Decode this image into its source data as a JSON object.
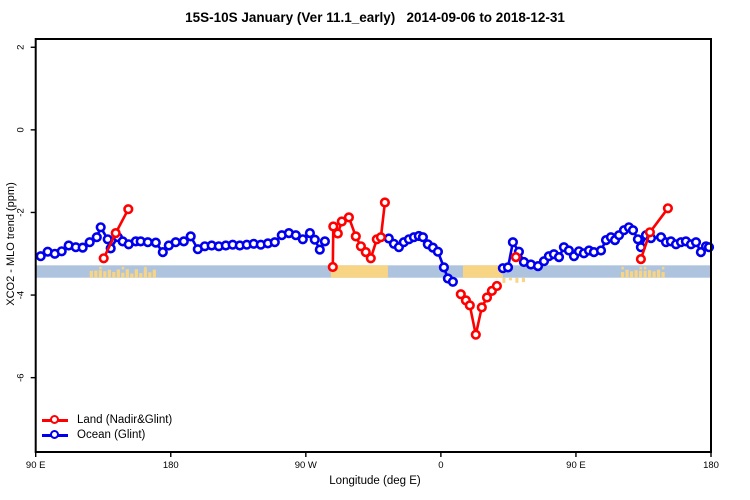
{
  "chart_data": {
    "type": "line",
    "title": "15S-10S January (Ver 11.1_early)   2014-09-06 to 2018-12-31",
    "xlabel": "Longitude (deg E)",
    "ylabel": "XCO2 - MLO trend (ppm)",
    "x_axis": {
      "range": [
        90,
        540
      ],
      "ticks": [
        {
          "lon": 90,
          "label": "90 E"
        },
        {
          "lon": 180,
          "label": "180"
        },
        {
          "lon": 270,
          "label": "90 W"
        },
        {
          "lon": 360,
          "label": "0"
        },
        {
          "lon": 450,
          "label": "90 E"
        },
        {
          "lon": 540,
          "label": "180"
        }
      ],
      "note": "longitude wraps eastward from 90E through 180, 90W, 0, 90E to 180"
    },
    "y_axis": {
      "range": [
        -7.8,
        2.2
      ],
      "ticks": [
        2,
        0,
        -2,
        -4,
        -6
      ]
    },
    "band": {
      "y_top": -3.28,
      "y_bottom": -3.58,
      "color": "#aec3de",
      "patch_color": "#f8d584",
      "patches": [
        {
          "from": 126.0,
          "to": 169.0,
          "style": "speckled"
        },
        {
          "from": 286.7,
          "to": 324.7,
          "style": "solid"
        },
        {
          "from": 374.7,
          "to": 401.3,
          "style": "solid"
        },
        {
          "from": 401.0,
          "to": 415.5,
          "style": "below"
        },
        {
          "from": 480.0,
          "to": 508.0,
          "style": "speckled"
        }
      ]
    },
    "grid": false,
    "legend_position": "bottom-left",
    "series": [
      {
        "name": "Ocean (Glint)",
        "color": "#0000ee",
        "segments": [
          [
            [
              93.3,
              -3.06
            ],
            [
              98.0,
              -2.95
            ],
            [
              102.7,
              -3.0
            ],
            [
              107.3,
              -2.94
            ],
            [
              112.0,
              -2.8
            ],
            [
              116.7,
              -2.84
            ],
            [
              121.3,
              -2.85
            ],
            [
              126.0,
              -2.72
            ],
            [
              130.7,
              -2.6
            ],
            [
              133.3,
              -2.36
            ],
            [
              138.0,
              -2.65
            ],
            [
              140.0,
              -2.87
            ],
            [
              144.7,
              -2.6
            ],
            [
              148.0,
              -2.7
            ],
            [
              152.0,
              -2.77
            ],
            [
              156.7,
              -2.7
            ],
            [
              160.0,
              -2.7
            ],
            [
              164.7,
              -2.72
            ],
            [
              170.0,
              -2.73
            ],
            [
              174.7,
              -2.96
            ],
            [
              178.7,
              -2.8
            ],
            [
              183.3,
              -2.72
            ],
            [
              188.7,
              -2.7
            ],
            [
              193.3,
              -2.58
            ],
            [
              198.0,
              -2.89
            ],
            [
              202.7,
              -2.82
            ],
            [
              207.3,
              -2.8
            ],
            [
              212.0,
              -2.82
            ],
            [
              216.7,
              -2.8
            ],
            [
              221.3,
              -2.78
            ],
            [
              226.0,
              -2.8
            ],
            [
              230.7,
              -2.78
            ],
            [
              235.3,
              -2.76
            ],
            [
              240.0,
              -2.78
            ],
            [
              244.7,
              -2.75
            ],
            [
              249.3,
              -2.72
            ],
            [
              254.0,
              -2.55
            ],
            [
              258.7,
              -2.5
            ],
            [
              263.3,
              -2.55
            ],
            [
              268.0,
              -2.65
            ],
            [
              272.7,
              -2.5
            ],
            [
              276.0,
              -2.66
            ],
            [
              279.3,
              -2.9
            ],
            [
              282.7,
              -2.7
            ]
          ],
          [
            [
              325.3,
              -2.63
            ],
            [
              328.7,
              -2.76
            ],
            [
              332.0,
              -2.84
            ],
            [
              335.3,
              -2.72
            ],
            [
              338.7,
              -2.65
            ],
            [
              342.0,
              -2.6
            ],
            [
              345.3,
              -2.57
            ],
            [
              348.0,
              -2.6
            ],
            [
              351.3,
              -2.77
            ],
            [
              354.7,
              -2.85
            ],
            [
              358.0,
              -2.95
            ],
            [
              362.0,
              -3.33
            ],
            [
              364.7,
              -3.6
            ],
            [
              368.0,
              -3.68
            ]
          ],
          [
            [
              401.3,
              -3.35
            ],
            [
              404.7,
              -3.33
            ],
            [
              408.0,
              -2.72
            ],
            [
              412.0,
              -2.95
            ],
            [
              415.3,
              -3.2
            ],
            [
              420.0,
              -3.26
            ],
            [
              424.7,
              -3.3
            ],
            [
              428.7,
              -3.18
            ],
            [
              432.0,
              -3.06
            ],
            [
              435.3,
              -3.01
            ],
            [
              438.7,
              -3.08
            ],
            [
              442.0,
              -2.84
            ],
            [
              445.3,
              -2.92
            ],
            [
              448.7,
              -3.06
            ],
            [
              452.0,
              -2.94
            ],
            [
              455.3,
              -2.99
            ],
            [
              458.7,
              -2.92
            ],
            [
              462.0,
              -2.96
            ],
            [
              466.7,
              -2.92
            ],
            [
              470.0,
              -2.67
            ],
            [
              473.3,
              -2.6
            ],
            [
              476.0,
              -2.67
            ],
            [
              478.7,
              -2.55
            ],
            [
              482.0,
              -2.43
            ],
            [
              485.3,
              -2.36
            ],
            [
              488.0,
              -2.43
            ],
            [
              491.3,
              -2.65
            ],
            [
              493.3,
              -2.84
            ],
            [
              496.7,
              -2.55
            ],
            [
              500.0,
              -2.62
            ],
            [
              506.7,
              -2.6
            ],
            [
              510.0,
              -2.72
            ],
            [
              513.3,
              -2.7
            ],
            [
              516.7,
              -2.77
            ],
            [
              520.0,
              -2.72
            ],
            [
              523.3,
              -2.7
            ],
            [
              526.7,
              -2.77
            ],
            [
              530.0,
              -2.72
            ],
            [
              533.3,
              -2.96
            ],
            [
              536.7,
              -2.82
            ],
            [
              538.7,
              -2.84
            ]
          ]
        ]
      },
      {
        "name": "Land (Nadir&Glint)",
        "color": "#ff0000",
        "segments": [
          [
            [
              135.3,
              -3.11
            ],
            [
              143.3,
              -2.5
            ],
            [
              151.7,
              -1.92
            ]
          ],
          [
            [
              288.0,
              -3.32
            ],
            [
              288.3,
              -2.34
            ],
            [
              291.3,
              -2.51
            ],
            [
              294.0,
              -2.22
            ],
            [
              298.7,
              -2.12
            ],
            [
              303.3,
              -2.58
            ],
            [
              306.7,
              -2.82
            ],
            [
              310.0,
              -2.96
            ],
            [
              313.3,
              -3.11
            ],
            [
              317.3,
              -2.65
            ],
            [
              320.0,
              -2.6
            ],
            [
              322.7,
              -1.76
            ]
          ],
          [
            [
              373.3,
              -3.98
            ],
            [
              376.7,
              -4.13
            ],
            [
              379.3,
              -4.25
            ],
            [
              383.3,
              -4.96
            ],
            [
              387.3,
              -4.3
            ],
            [
              390.7,
              -4.06
            ],
            [
              394.0,
              -3.9
            ],
            [
              397.3,
              -3.78
            ]
          ],
          [
            [
              410.0,
              -3.08
            ]
          ],
          [
            [
              493.3,
              -3.13
            ],
            [
              499.3,
              -2.48
            ],
            [
              511.3,
              -1.9
            ]
          ]
        ]
      }
    ],
    "legend_order": [
      "Land (Nadir&Glint)",
      "Ocean (Glint)"
    ]
  }
}
